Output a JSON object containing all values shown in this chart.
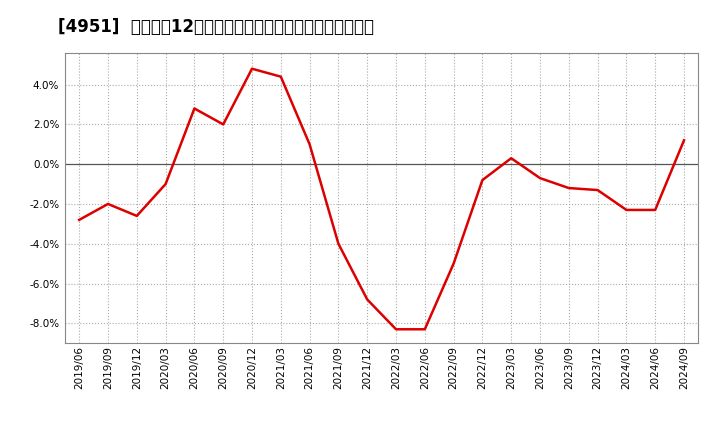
{
  "title": "[4951]  売上高の12か月移動合計の対前年同期増減率の推移",
  "x_labels": [
    "2019/06",
    "2019/09",
    "2019/12",
    "2020/03",
    "2020/06",
    "2020/09",
    "2020/12",
    "2021/03",
    "2021/06",
    "2021/09",
    "2021/12",
    "2022/03",
    "2022/06",
    "2022/09",
    "2022/12",
    "2023/03",
    "2023/06",
    "2023/09",
    "2023/12",
    "2024/03",
    "2024/06",
    "2024/09"
  ],
  "y_values": [
    -0.028,
    -0.02,
    -0.026,
    -0.01,
    0.028,
    0.02,
    0.048,
    0.044,
    0.01,
    -0.04,
    -0.068,
    -0.083,
    -0.083,
    -0.05,
    -0.008,
    0.003,
    -0.007,
    -0.012,
    -0.013,
    -0.023,
    -0.023,
    0.012
  ],
  "line_color": "#dd0000",
  "background_color": "#ffffff",
  "plot_bg_color": "#ffffff",
  "grid_color": "#aaaaaa",
  "zero_line_color": "#555555",
  "ylim": [
    -0.09,
    0.056
  ],
  "yticks": [
    -0.08,
    -0.06,
    -0.04,
    -0.02,
    0.0,
    0.02,
    0.04
  ],
  "title_fontsize": 12,
  "tick_fontsize": 7.5,
  "line_width": 1.8
}
